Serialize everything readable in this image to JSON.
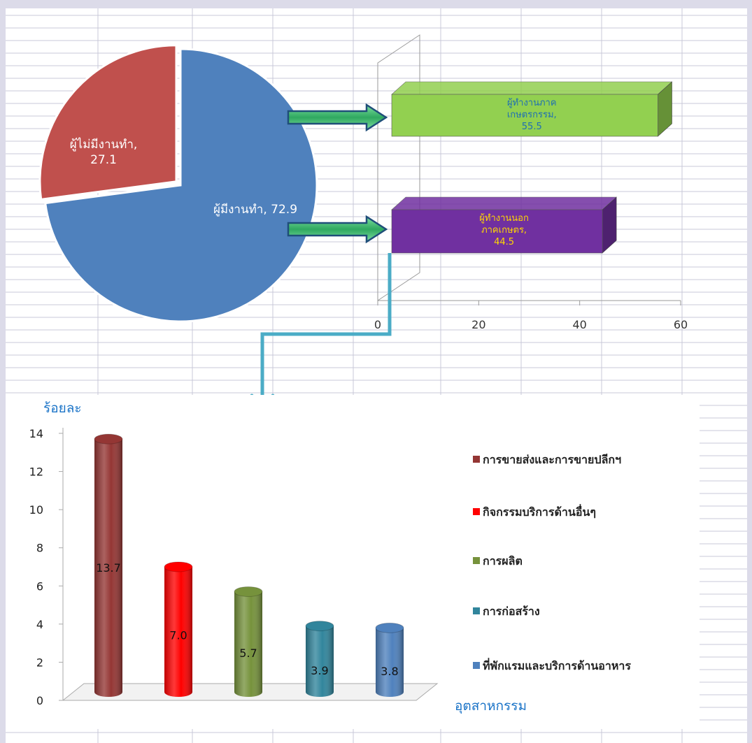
{
  "chart_data": [
    {
      "type": "pie",
      "slices": [
        {
          "label": "ผู้มีงานทำ",
          "value": 72.9,
          "text": "ผู้มีงานทำ, 72.9",
          "color": "#4f81bd"
        },
        {
          "label": "ผู้ไม่มีงานทำ",
          "value": 27.1,
          "text_lines": [
            "ผู้ไม่มีงานทำ,",
            "27.1"
          ],
          "color": "#c0504d"
        }
      ]
    },
    {
      "type": "bar",
      "orientation": "horizontal",
      "categories": [
        "ผู้ทำงานภาคเกษตรกรรม",
        "ผู้ทำงานนอกภาคเกษตร"
      ],
      "values": [
        55.5,
        44.5
      ],
      "labels": [
        [
          "ผู้ทำงานภาค",
          "เกษตรกรรม,",
          "55.5"
        ],
        [
          "ผู้ทำงานนอก",
          "ภาคเกษตร,",
          "44.5"
        ]
      ],
      "colors": [
        "#92d050",
        "#7030a0"
      ],
      "label_colors": [
        "#1f6fb2",
        "#ffd700"
      ],
      "xlim": [
        0,
        60
      ],
      "xticks": [
        "0",
        "20",
        "40",
        "60"
      ]
    },
    {
      "type": "bar",
      "ylabel": "ร้อยละ",
      "xlabel": "อุตสาหกรรม",
      "ylim": [
        0,
        14
      ],
      "yticks": [
        "0",
        "2",
        "4",
        "6",
        "8",
        "10",
        "12",
        "14"
      ],
      "series": [
        {
          "name": "การขายส่งและการขายปลีกฯ",
          "value": 13.7,
          "label": "13.7",
          "color": "#943634"
        },
        {
          "name": "กิจกรรมบริการด้านอื่นๆ",
          "value": 7.0,
          "label": "7.0",
          "color": "#ff0000"
        },
        {
          "name": "การผลิต",
          "value": 5.7,
          "label": "5.7",
          "color": "#76923c"
        },
        {
          "name": "การก่อสร้าง",
          "value": 3.9,
          "label": "3.9",
          "color": "#31859c"
        },
        {
          "name": "ที่พักแรมและบริการด้านอาหาร",
          "value": 3.8,
          "label": "3.8",
          "color": "#4f81bd"
        }
      ],
      "legend": "right"
    }
  ],
  "colors": {
    "grid_bg": "#ffffff",
    "grid_line": "#c9c8d8",
    "connector": "#4bacc6",
    "arrow_fill": "#3cb371",
    "arrow_edge": "#1f4e79",
    "axis_text_blue": "#1a73c7"
  }
}
